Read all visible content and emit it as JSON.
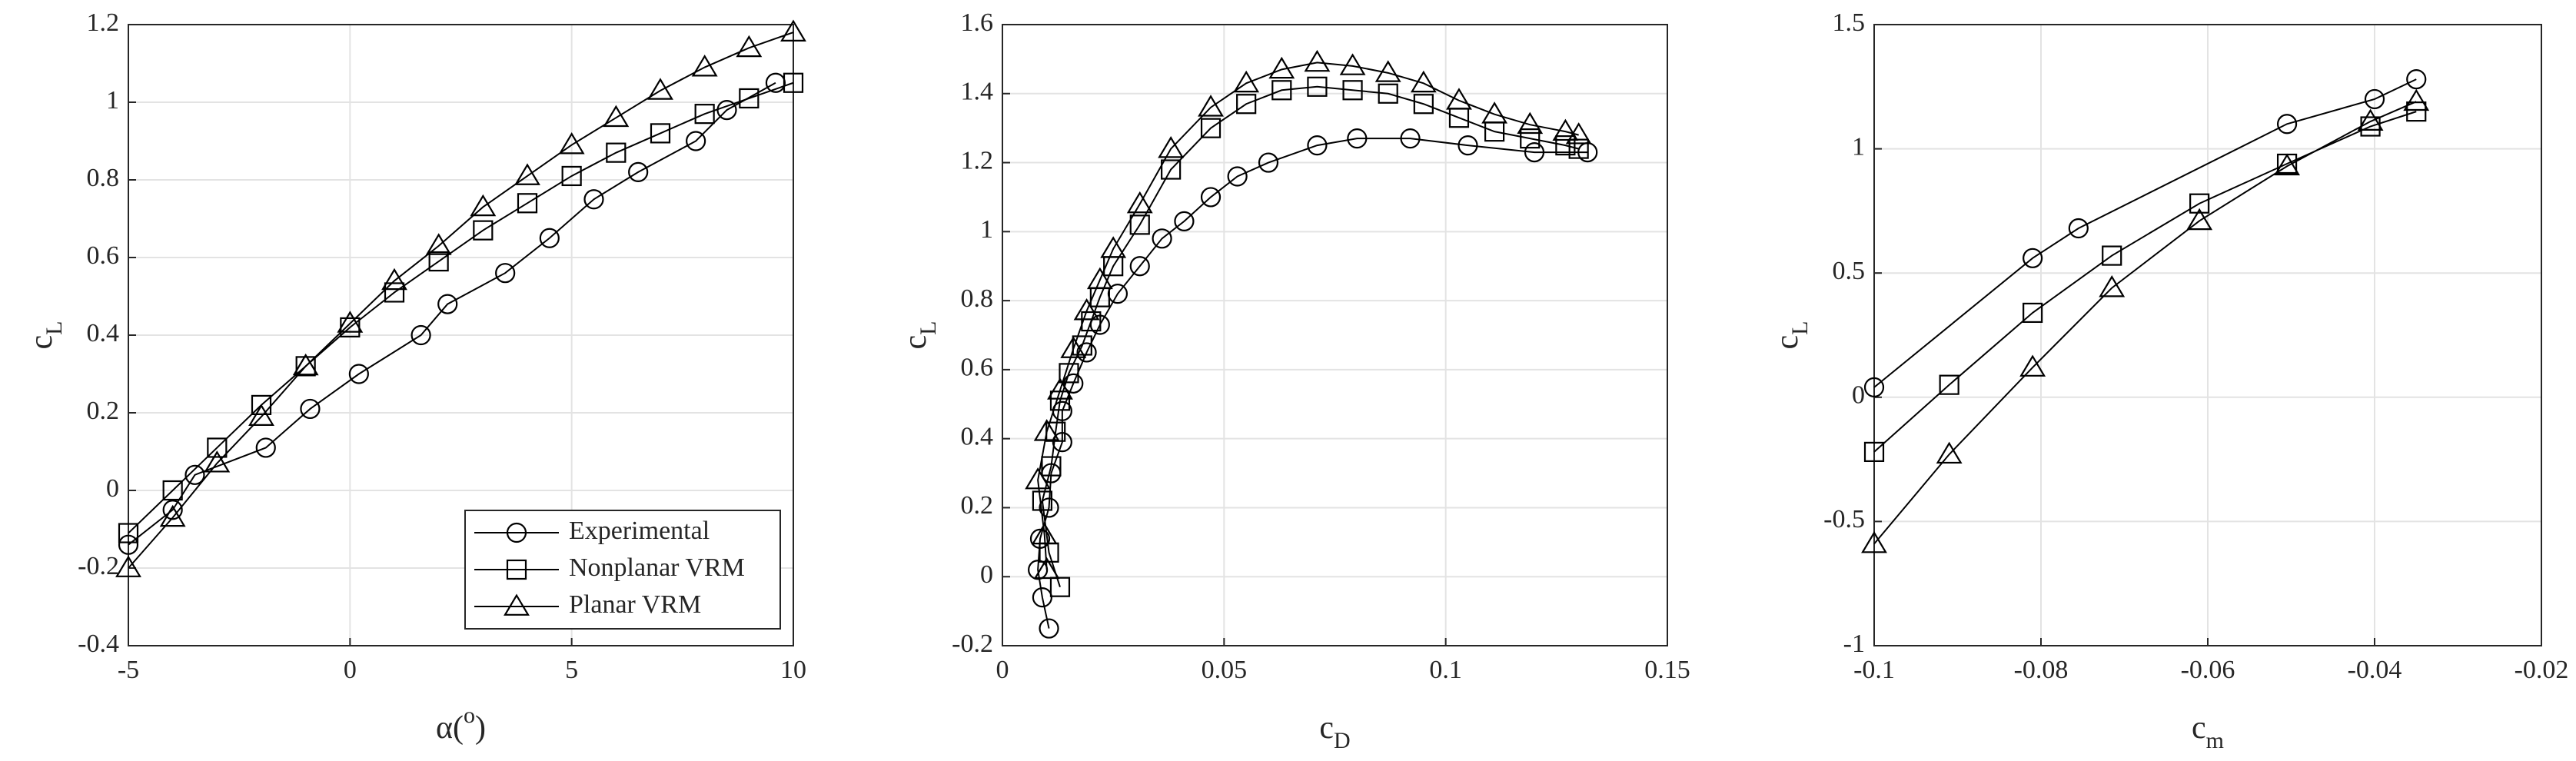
{
  "chart_data": [
    {
      "type": "line",
      "grid": true,
      "legend": "lower right",
      "xlabel": [
        {
          "text": "α("
        },
        {
          "text": "o",
          "shift": "super"
        },
        {
          "text": ")"
        }
      ],
      "ylabel": [
        {
          "text": "c"
        },
        {
          "text": "L",
          "shift": "sub"
        }
      ],
      "xlim": [
        -5,
        10
      ],
      "xticks": [
        -5,
        0,
        5,
        10
      ],
      "ylim": [
        -0.4,
        1.2
      ],
      "yticks": [
        -0.4,
        -0.2,
        0,
        0.2,
        0.4,
        0.6,
        0.8,
        1,
        1.2
      ],
      "series": [
        {
          "name": "Experimental",
          "marker": "circle",
          "color": "#000000",
          "x": [
            -5,
            -4,
            -3.5,
            -1.9,
            -0.9,
            0.2,
            1.6,
            2.2,
            3.5,
            4.5,
            5.5,
            6.5,
            7.8,
            8.5,
            9.6
          ],
          "values": [
            -0.14,
            -0.05,
            0.04,
            0.11,
            0.21,
            0.3,
            0.4,
            0.48,
            0.56,
            0.65,
            0.75,
            0.82,
            0.9,
            0.98,
            1.05
          ]
        },
        {
          "name": "Nonplanar VRM",
          "marker": "square",
          "color": "#000000",
          "x": [
            -5,
            -4,
            -3,
            -2,
            -1,
            0,
            1,
            2,
            3,
            4,
            5,
            6,
            7,
            8,
            9,
            10
          ],
          "values": [
            -0.11,
            0,
            0.11,
            0.22,
            0.32,
            0.42,
            0.51,
            0.59,
            0.67,
            0.74,
            0.81,
            0.87,
            0.92,
            0.97,
            1.01,
            1.05
          ]
        },
        {
          "name": "Planar VRM",
          "marker": "triangle",
          "color": "#000000",
          "x": [
            -5,
            -4,
            -3,
            -2,
            -1,
            0,
            1,
            2,
            3,
            4,
            5,
            6,
            7,
            8,
            9,
            10
          ],
          "values": [
            -0.2,
            -0.07,
            0.07,
            0.19,
            0.32,
            0.43,
            0.54,
            0.63,
            0.73,
            0.81,
            0.89,
            0.96,
            1.03,
            1.09,
            1.14,
            1.18
          ]
        }
      ]
    },
    {
      "type": "line",
      "grid": true,
      "xlabel": [
        {
          "text": "c"
        },
        {
          "text": "D",
          "shift": "sub"
        }
      ],
      "ylabel": [
        {
          "text": "c"
        },
        {
          "text": "L",
          "shift": "sub"
        }
      ],
      "xlim": [
        0,
        0.15
      ],
      "xticks": [
        0,
        0.05,
        0.1,
        0.15
      ],
      "ylim": [
        -0.2,
        1.6
      ],
      "yticks": [
        -0.2,
        0,
        0.2,
        0.4,
        0.6,
        0.8,
        1,
        1.2,
        1.4,
        1.6
      ],
      "series": [
        {
          "marker": "circle",
          "color": "#000000",
          "x": [
            0.0105,
            0.009,
            0.008,
            0.0085,
            0.0105,
            0.011,
            0.0135,
            0.0135,
            0.016,
            0.019,
            0.022,
            0.026,
            0.031,
            0.036,
            0.041,
            0.047,
            0.053,
            0.06,
            0.071,
            0.08,
            0.092,
            0.105,
            0.12,
            0.132
          ],
          "values": [
            -0.15,
            -0.06,
            0.02,
            0.11,
            0.2,
            0.3,
            0.39,
            0.48,
            0.56,
            0.65,
            0.73,
            0.82,
            0.9,
            0.98,
            1.03,
            1.1,
            1.16,
            1.2,
            1.25,
            1.27,
            1.27,
            1.25,
            1.23,
            1.23
          ]
        },
        {
          "marker": "square",
          "color": "#000000",
          "x": [
            0.013,
            0.0105,
            0.009,
            0.011,
            0.012,
            0.013,
            0.015,
            0.018,
            0.02,
            0.022,
            0.025,
            0.031,
            0.038,
            0.047,
            0.055,
            0.063,
            0.071,
            0.079,
            0.087,
            0.095,
            0.103,
            0.111,
            0.119,
            0.127,
            0.13
          ],
          "values": [
            -0.03,
            0.07,
            0.22,
            0.32,
            0.42,
            0.51,
            0.59,
            0.67,
            0.74,
            0.81,
            0.9,
            1.02,
            1.18,
            1.3,
            1.37,
            1.41,
            1.42,
            1.41,
            1.4,
            1.37,
            1.33,
            1.29,
            1.27,
            1.25,
            1.24
          ]
        },
        {
          "marker": "triangle",
          "color": "#000000",
          "x": [
            0.01,
            0.0095,
            0.008,
            0.01,
            0.013,
            0.016,
            0.019,
            0.022,
            0.025,
            0.031,
            0.038,
            0.047,
            0.055,
            0.063,
            0.071,
            0.079,
            0.087,
            0.095,
            0.103,
            0.111,
            0.119,
            0.127,
            0.13
          ],
          "values": [
            0.02,
            0.12,
            0.28,
            0.42,
            0.54,
            0.66,
            0.77,
            0.86,
            0.95,
            1.08,
            1.24,
            1.36,
            1.43,
            1.47,
            1.49,
            1.48,
            1.46,
            1.43,
            1.38,
            1.34,
            1.31,
            1.29,
            1.28
          ]
        }
      ]
    },
    {
      "type": "line",
      "grid": true,
      "xlabel": [
        {
          "text": "c"
        },
        {
          "text": "m",
          "shift": "sub"
        }
      ],
      "ylabel": [
        {
          "text": "c"
        },
        {
          "text": "L",
          "shift": "sub"
        }
      ],
      "xlim": [
        -0.1,
        -0.02
      ],
      "xticks": [
        -0.1,
        -0.08,
        -0.06,
        -0.04,
        -0.02
      ],
      "ylim": [
        -1,
        1.5
      ],
      "yticks": [
        -1,
        -0.5,
        0,
        0.5,
        1,
        1.5
      ],
      "series": [
        {
          "marker": "circle",
          "color": "#000000",
          "x": [
            -0.1,
            -0.081,
            -0.0755,
            -0.0505,
            -0.04,
            -0.035
          ],
          "values": [
            0.04,
            0.56,
            0.68,
            1.1,
            1.2,
            1.28
          ]
        },
        {
          "marker": "square",
          "color": "#000000",
          "x": [
            -0.1,
            -0.091,
            -0.081,
            -0.0715,
            -0.061,
            -0.0505,
            -0.0405,
            -0.035
          ],
          "values": [
            -0.22,
            0.05,
            0.34,
            0.57,
            0.78,
            0.94,
            1.09,
            1.15
          ]
        },
        {
          "marker": "triangle",
          "color": "#000000",
          "x": [
            -0.1,
            -0.091,
            -0.081,
            -0.0715,
            -0.061,
            -0.0505,
            -0.0405,
            -0.035
          ],
          "values": [
            -0.59,
            -0.23,
            0.12,
            0.44,
            0.71,
            0.93,
            1.11,
            1.19
          ]
        }
      ]
    }
  ]
}
